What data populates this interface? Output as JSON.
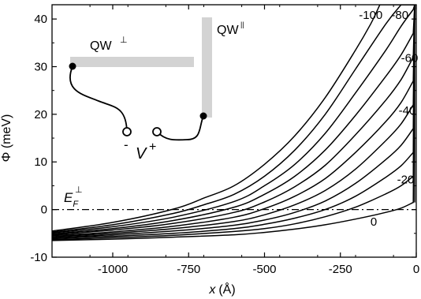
{
  "chart_data": {
    "type": "line",
    "title": "",
    "xlabel_italic": "x",
    "xlabel_unit": "(Å)",
    "ylabel": "Φ (meV)",
    "xlim": [
      -1200,
      0
    ],
    "ylim": [
      -10,
      43
    ],
    "xticks": [
      -1000,
      -750,
      -500,
      -250,
      0
    ],
    "xtick_labels": [
      "-1000",
      "-750",
      "-500",
      "-250",
      "0"
    ],
    "yticks": [
      -10,
      0,
      10,
      20,
      30,
      40
    ],
    "ytick_labels": [
      "-10",
      "0",
      "10",
      "20",
      "30",
      "40"
    ],
    "fermi_level": 0,
    "fermi_label_main": "E",
    "fermi_label_sub": "F",
    "fermi_label_sup": "⊥",
    "curve_labels": [
      "-100",
      "-80",
      "-60",
      "-40",
      "-20",
      "0"
    ],
    "series": [
      {
        "voltage": 0,
        "x": [
          -1200,
          -1000,
          -800,
          -600,
          -500,
          -400,
          -300,
          -200,
          -100,
          -50,
          -10
        ],
        "y": [
          -6.5,
          -6.2,
          -5.8,
          -5.3,
          -4.8,
          -4.1,
          -3.2,
          -2,
          -0.6,
          0.3,
          1.5
        ]
      },
      {
        "voltage": -10,
        "x": [
          -1200,
          -1000,
          -800,
          -600,
          -500,
          -400,
          -300,
          -200,
          -100,
          -50,
          -10
        ],
        "y": [
          -6.3,
          -5.9,
          -5.4,
          -4.6,
          -4,
          -3,
          -1.5,
          0.5,
          3.3,
          5,
          7
        ]
      },
      {
        "voltage": -20,
        "x": [
          -1200,
          -1000,
          -800,
          -600,
          -500,
          -400,
          -300,
          -200,
          -100,
          -50,
          -10
        ],
        "y": [
          -6.1,
          -5.6,
          -5,
          -4,
          -3.1,
          -1.8,
          0,
          2.8,
          6.8,
          9.2,
          12
        ]
      },
      {
        "voltage": -30,
        "x": [
          -1200,
          -1000,
          -800,
          -600,
          -500,
          -400,
          -300,
          -200,
          -100,
          -50,
          -10
        ],
        "y": [
          -5.9,
          -5.3,
          -4.5,
          -3.3,
          -2.2,
          -0.6,
          1.8,
          5.5,
          10.5,
          13.5,
          17
        ]
      },
      {
        "voltage": -40,
        "x": [
          -1200,
          -1000,
          -800,
          -600,
          -500,
          -400,
          -300,
          -200,
          -100,
          -50,
          -10
        ],
        "y": [
          -5.7,
          -5,
          -4,
          -2.5,
          -1.1,
          1,
          4,
          8.5,
          14.5,
          18,
          22
        ]
      },
      {
        "voltage": -50,
        "x": [
          -1200,
          -1000,
          -800,
          -600,
          -500,
          -400,
          -300,
          -200,
          -100,
          -50,
          -10
        ],
        "y": [
          -5.5,
          -4.7,
          -3.5,
          -1.6,
          0.2,
          2.8,
          6.5,
          12,
          18.5,
          22.5,
          27
        ]
      },
      {
        "voltage": -60,
        "x": [
          -1200,
          -1000,
          -800,
          -600,
          -500,
          -400,
          -300,
          -200,
          -100,
          -50,
          -10
        ],
        "y": [
          -5.3,
          -4.3,
          -2.9,
          -0.6,
          1.6,
          4.8,
          9.3,
          15.7,
          23,
          27.3,
          32
        ]
      },
      {
        "voltage": -70,
        "x": [
          -1200,
          -1000,
          -800,
          -600,
          -500,
          -400,
          -300,
          -200,
          -100,
          -50,
          -10
        ],
        "y": [
          -5.1,
          -4,
          -2.3,
          0.5,
          3.2,
          7,
          12.5,
          19.8,
          28,
          32.5,
          37
        ]
      },
      {
        "voltage": -80,
        "x": [
          -1200,
          -1000,
          -800,
          -600,
          -500,
          -400,
          -300,
          -200,
          -100,
          -50,
          -10
        ],
        "y": [
          -4.9,
          -3.6,
          -1.6,
          1.7,
          5,
          9.5,
          16,
          24.5,
          33.5,
          38.5,
          42
        ]
      },
      {
        "voltage": -90,
        "x": [
          -1200,
          -1000,
          -800,
          -700,
          -600,
          -500,
          -400,
          -300,
          -200,
          -100,
          -50
        ],
        "y": [
          -4.7,
          -3.2,
          -0.8,
          1,
          3.2,
          7,
          12.5,
          20,
          29.5,
          39,
          43
        ]
      },
      {
        "voltage": -100,
        "x": [
          -1200,
          -1000,
          -800,
          -700,
          -600,
          -500,
          -400,
          -300,
          -200,
          -150,
          -120
        ],
        "y": [
          -4.5,
          -2.7,
          0.1,
          2.4,
          5,
          9.5,
          15.5,
          23.5,
          33.5,
          39,
          43
        ]
      }
    ]
  },
  "inset": {
    "qw_perp_label": "QW",
    "qw_perp_sup": "⊥",
    "qw_par_label": "QW",
    "qw_par_sup": "||",
    "voltage_label": "V",
    "minus_label": "-",
    "plus_label": "+"
  },
  "colors": {
    "line": "#000000",
    "bar": "#d3d3d3"
  }
}
